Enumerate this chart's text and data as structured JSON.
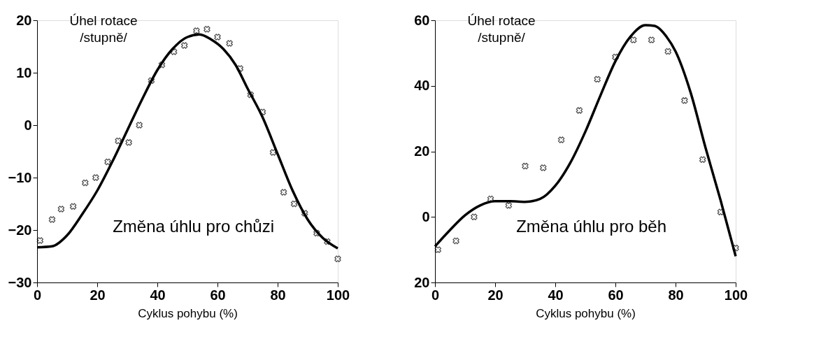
{
  "chart_data": [
    {
      "type": "line",
      "ylabel": "Úhel rotace /stupně/",
      "xlabel": "Cyklus pohybu (%)",
      "annotations": [
        "Změna úhlu pro chůzi"
      ],
      "xlim": [
        0,
        100
      ],
      "xticks": [
        0,
        20,
        40,
        60,
        80,
        100
      ],
      "ylim": [
        -30,
        20
      ],
      "yticks": [
        -30,
        -20,
        -10,
        0,
        10,
        20
      ],
      "grid": false,
      "series": [
        {
          "type": "scatter",
          "marker": "cross",
          "color": "#000000",
          "x": [
            1,
            5,
            8,
            12,
            16,
            19.5,
            23.5,
            27,
            30.5,
            34,
            38,
            41.5,
            45.5,
            49,
            53,
            56.5,
            60,
            64,
            67.5,
            71,
            75,
            78.5,
            82,
            85.5,
            89,
            93,
            96.5,
            100
          ],
          "values": [
            -22,
            -18,
            -16,
            -15.5,
            -11,
            -10,
            -7,
            -3,
            -3.3,
            0,
            8.5,
            11.5,
            14,
            15.2,
            18,
            18.3,
            16.8,
            15.6,
            10.8,
            5.8,
            2.5,
            -5.2,
            -12.8,
            -15,
            -16.8,
            -20.6,
            -22.2,
            -25.5
          ]
        },
        {
          "marker": "none",
          "line_style": "solid",
          "color": "#000000",
          "x": [
            0,
            5,
            10,
            15,
            20,
            25,
            30,
            35,
            40,
            45,
            50,
            54,
            58,
            62,
            66,
            70,
            75,
            80,
            85,
            90,
            95,
            100
          ],
          "values": [
            -23.3,
            -23.1,
            -21,
            -17,
            -12.5,
            -7,
            -1,
            5,
            10.5,
            14.5,
            16.8,
            17.3,
            16.3,
            14.5,
            11.5,
            7,
            1.5,
            -5.5,
            -12.5,
            -18,
            -21.5,
            -23.5
          ]
        }
      ]
    },
    {
      "type": "line",
      "ylabel": "Úhel rotace /stupně/",
      "xlabel": "Cyklus pohybu (%)",
      "annotations": [
        "Změna úhlu pro běh"
      ],
      "xlim": [
        0,
        100
      ],
      "xticks": [
        0,
        20,
        40,
        60,
        80,
        100
      ],
      "ylim": [
        -20,
        60
      ],
      "yticks": [
        {
          "value": -20,
          "label": "20"
        },
        0,
        20,
        40,
        60
      ],
      "grid": false,
      "series": [
        {
          "type": "scatter",
          "marker": "cross",
          "color": "#000000",
          "x": [
            1,
            7,
            13,
            18.5,
            24.5,
            30,
            36,
            42,
            48,
            54,
            60,
            66,
            72,
            77.5,
            83,
            89,
            95,
            100
          ],
          "values": [
            -10,
            -7.3,
            0,
            5.5,
            3.5,
            15.5,
            15,
            23.5,
            32.5,
            42,
            48.8,
            54,
            54,
            50.5,
            35.5,
            17.5,
            1.5,
            -9.5
          ]
        },
        {
          "marker": "none",
          "line_style": "solid",
          "color": "#000000",
          "x": [
            0,
            5,
            10,
            15,
            20,
            25,
            30,
            35,
            40,
            45,
            50,
            55,
            60,
            65,
            70,
            73,
            77,
            80,
            85,
            90,
            95,
            100
          ],
          "values": [
            -9,
            -4,
            0.5,
            3.5,
            4.8,
            4.8,
            4.6,
            5.5,
            9.5,
            16.5,
            26,
            37,
            47.5,
            55,
            58.5,
            58.3,
            55,
            50.5,
            38,
            21,
            5,
            -12
          ]
        }
      ]
    }
  ]
}
